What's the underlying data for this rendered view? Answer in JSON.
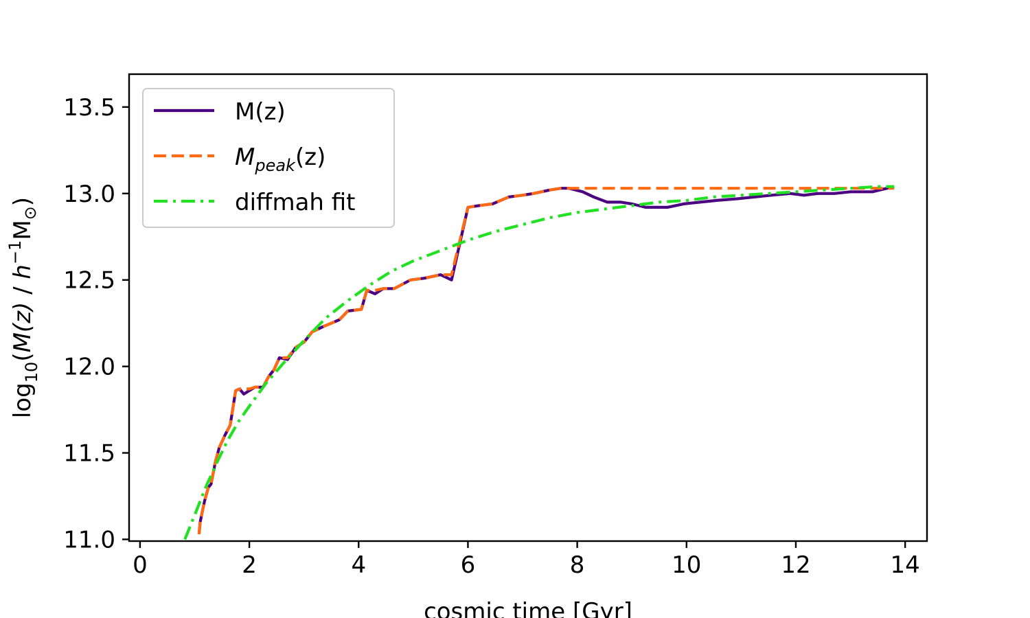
{
  "chart_data": {
    "type": "line",
    "xlabel": "cosmic time [Gyr]",
    "ylabel_parts": {
      "a": "log",
      "b": "10",
      "c": "(",
      "d": "M(z)",
      "e": " / ",
      "f": "h",
      "g": "−1",
      "h": "M",
      "i": "⊙",
      "j": ")"
    },
    "xlim": [
      -0.2,
      14.4
    ],
    "ylim": [
      10.99,
      13.69
    ],
    "xticks": [
      0,
      2,
      4,
      6,
      8,
      10,
      12,
      14
    ],
    "xtick_labels": [
      "0",
      "2",
      "4",
      "6",
      "8",
      "10",
      "12",
      "14"
    ],
    "yticks": [
      11.0,
      11.5,
      12.0,
      12.5,
      13.0,
      13.5
    ],
    "ytick_labels": [
      "11.0",
      "11.5",
      "12.0",
      "12.5",
      "13.0",
      "13.5"
    ],
    "grid": false,
    "legend_position": "top-left",
    "series": [
      {
        "name": "M(z)",
        "color": "#4b0082",
        "style": "solid",
        "x": [
          1.08,
          1.1,
          1.18,
          1.25,
          1.3,
          1.38,
          1.45,
          1.55,
          1.65,
          1.75,
          1.82,
          1.9,
          2.0,
          2.1,
          2.25,
          2.35,
          2.45,
          2.55,
          2.7,
          2.85,
          3.0,
          3.15,
          3.35,
          3.5,
          3.65,
          3.8,
          4.05,
          4.15,
          4.3,
          4.45,
          4.65,
          4.95,
          5.2,
          5.5,
          5.7,
          6.0,
          6.2,
          6.45,
          6.75,
          7.0,
          7.2,
          7.5,
          7.7,
          7.85,
          8.1,
          8.3,
          8.55,
          8.8,
          9.0,
          9.25,
          9.65,
          9.95,
          10.25,
          10.55,
          10.95,
          11.25,
          11.55,
          11.9,
          12.15,
          12.4,
          12.7,
          13.0,
          13.4,
          13.8
        ],
        "y": [
          11.03,
          11.1,
          11.22,
          11.3,
          11.32,
          11.45,
          11.53,
          11.6,
          11.66,
          11.86,
          11.87,
          11.84,
          11.86,
          11.88,
          11.88,
          11.94,
          11.98,
          12.05,
          12.04,
          12.11,
          12.14,
          12.2,
          12.23,
          12.25,
          12.27,
          12.32,
          12.33,
          12.44,
          12.42,
          12.45,
          12.45,
          12.5,
          12.51,
          12.53,
          12.5,
          12.92,
          12.93,
          12.94,
          12.98,
          12.99,
          13.0,
          13.02,
          13.03,
          13.03,
          13.01,
          12.98,
          12.95,
          12.95,
          12.94,
          12.92,
          12.92,
          12.94,
          12.95,
          12.96,
          12.97,
          12.98,
          12.99,
          13.0,
          12.99,
          13.0,
          13.0,
          13.01,
          13.01,
          13.04
        ]
      },
      {
        "name": "M_peak(z)",
        "color": "#ff6a13",
        "style": "dashed",
        "x": [
          1.08,
          1.1,
          1.18,
          1.25,
          1.3,
          1.38,
          1.45,
          1.55,
          1.65,
          1.75,
          1.82,
          1.9,
          2.0,
          2.1,
          2.25,
          2.35,
          2.45,
          2.55,
          2.7,
          2.85,
          3.0,
          3.15,
          3.35,
          3.5,
          3.65,
          3.8,
          4.05,
          4.15,
          4.3,
          4.45,
          4.65,
          4.95,
          5.2,
          5.5,
          5.7,
          6.0,
          6.2,
          6.45,
          6.75,
          7.0,
          7.2,
          7.5,
          7.7,
          7.85,
          13.8
        ],
        "y": [
          11.03,
          11.1,
          11.22,
          11.3,
          11.32,
          11.45,
          11.53,
          11.6,
          11.66,
          11.86,
          11.87,
          11.87,
          11.87,
          11.88,
          11.88,
          11.94,
          11.98,
          12.05,
          12.05,
          12.11,
          12.14,
          12.2,
          12.23,
          12.25,
          12.27,
          12.32,
          12.33,
          12.44,
          12.44,
          12.45,
          12.45,
          12.5,
          12.51,
          12.53,
          12.53,
          12.92,
          12.93,
          12.94,
          12.98,
          12.99,
          13.0,
          13.02,
          13.03,
          13.03,
          13.03
        ]
      },
      {
        "name": "diffmah fit",
        "color": "#22e022",
        "style": "dashdot",
        "x": [
          0.82,
          1.0,
          1.2,
          1.4,
          1.6,
          1.8,
          2.0,
          2.3,
          2.6,
          3.0,
          3.4,
          3.8,
          4.2,
          4.6,
          5.0,
          5.5,
          6.0,
          6.5,
          7.0,
          7.5,
          8.0,
          8.5,
          9.0,
          9.5,
          10.0,
          10.5,
          11.0,
          11.5,
          12.0,
          12.5,
          13.0,
          13.5,
          13.8
        ],
        "y": [
          11.0,
          11.14,
          11.3,
          11.44,
          11.57,
          11.68,
          11.77,
          11.9,
          12.01,
          12.15,
          12.28,
          12.38,
          12.47,
          12.55,
          12.61,
          12.67,
          12.73,
          12.78,
          12.82,
          12.86,
          12.89,
          12.91,
          12.93,
          12.95,
          12.96,
          12.98,
          12.99,
          13.0,
          13.01,
          13.02,
          13.03,
          13.04,
          13.04
        ]
      }
    ]
  },
  "legend": {
    "items": [
      {
        "label": "M(z)",
        "color": "#4b0082",
        "style": "solid"
      },
      {
        "label_main": "M",
        "label_sub": "peak",
        "label_tail": "(z)",
        "color": "#ff6a13",
        "style": "dashed"
      },
      {
        "label": "diffmah fit",
        "color": "#22e022",
        "style": "dashdot"
      }
    ]
  }
}
